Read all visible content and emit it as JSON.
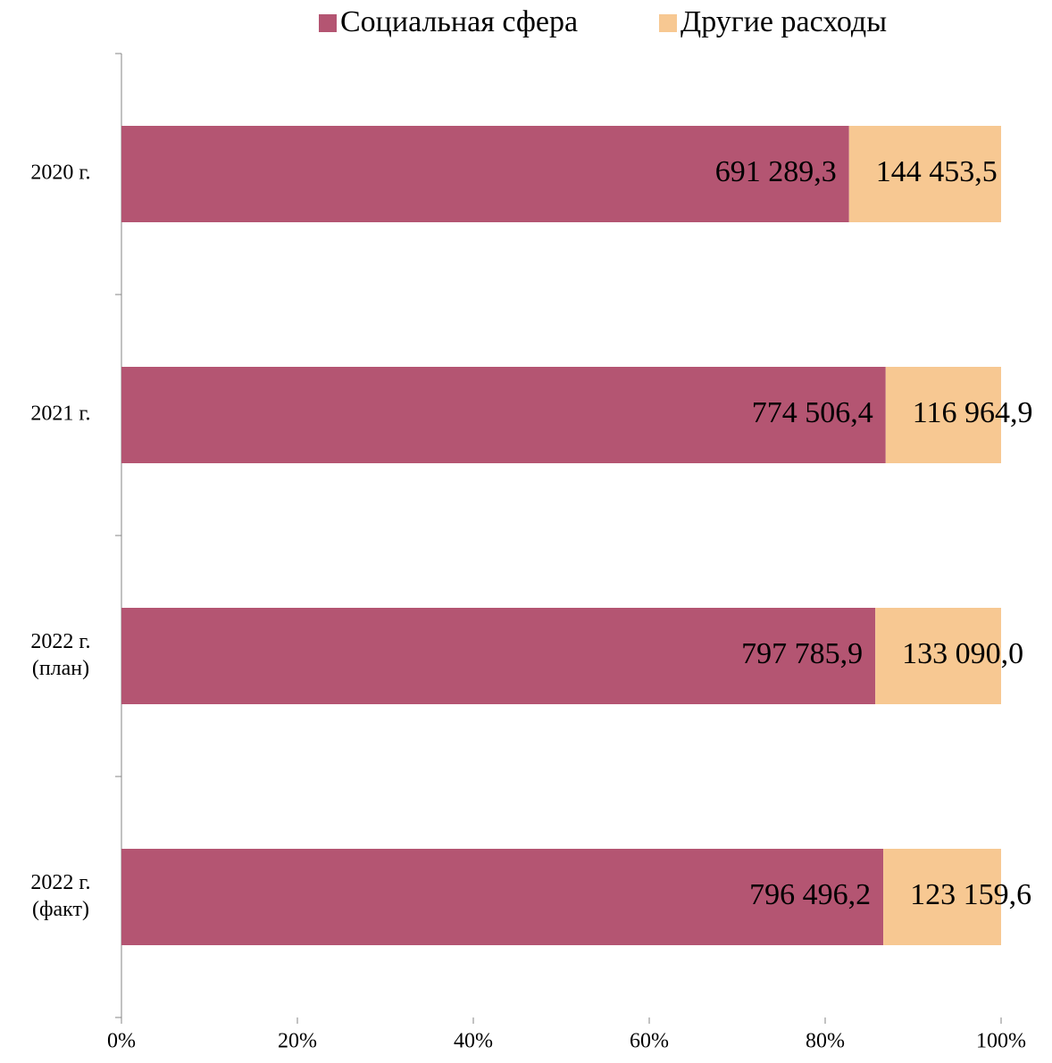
{
  "chart_data": {
    "type": "bar",
    "orientation": "horizontal",
    "stacking": "percent",
    "categories": [
      "2020 г.",
      "2021 г.",
      "2022 г.\n(план)",
      "2022 г.\n(факт)"
    ],
    "series": [
      {
        "name": "Социальная сфера",
        "color": "#b45572",
        "values": [
          691289.3,
          774506.4,
          797785.9,
          796496.2
        ],
        "value_labels": [
          "691 289,3",
          "774 506,4",
          "797 785,9",
          "796 496,2"
        ]
      },
      {
        "name": "Другие расходы",
        "color": "#f7c892",
        "values": [
          144453.5,
          116964.9,
          133090.0,
          123159.6
        ],
        "value_labels": [
          "144 453,5",
          "116 964,9",
          "133 090,0",
          "123 159,6"
        ]
      }
    ],
    "xlim": [
      0,
      100
    ],
    "xticks": [
      {
        "value": 0,
        "label": "0%"
      },
      {
        "value": 20,
        "label": "20%"
      },
      {
        "value": 40,
        "label": "40%"
      },
      {
        "value": 60,
        "label": "60%"
      },
      {
        "value": 80,
        "label": "80%"
      },
      {
        "value": 100,
        "label": "100%"
      }
    ],
    "legend": "top"
  }
}
